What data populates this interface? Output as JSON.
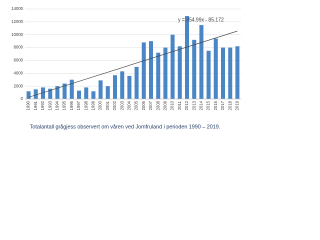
{
  "chart_data": {
    "type": "bar",
    "title": "Totalantall grågjess observert om våren ved Jomfruland i perioden 1990 – 2019.",
    "categories": [
      "1990",
      "1991",
      "1992",
      "1993",
      "1994",
      "1995",
      "1996",
      "1997",
      "1998",
      "1999",
      "2000",
      "2001",
      "2002",
      "2003",
      "2004",
      "2005",
      "2006",
      "2007",
      "2008",
      "2009",
      "2010",
      "2011",
      "2012",
      "2013",
      "2014",
      "2015",
      "2016",
      "2017",
      "2018",
      "2019"
    ],
    "values": [
      1200,
      1500,
      1800,
      1600,
      2000,
      2400,
      3000,
      1300,
      1800,
      1200,
      2900,
      2000,
      3700,
      4300,
      3600,
      5000,
      8800,
      9000,
      7200,
      8000,
      10000,
      8200,
      12900,
      9200,
      11500,
      7500,
      9400,
      8000,
      8000,
      8200
    ],
    "color": "#4a86c5",
    "ylim": [
      0,
      14000
    ],
    "yticks": [
      0,
      2000,
      4000,
      6000,
      8000,
      10000,
      12000,
      14000
    ],
    "grid": true,
    "trendline": {
      "label": "y = 354.99x - 85.172",
      "slope": 354.99,
      "intercept": -85.172,
      "color": "#404040"
    }
  }
}
